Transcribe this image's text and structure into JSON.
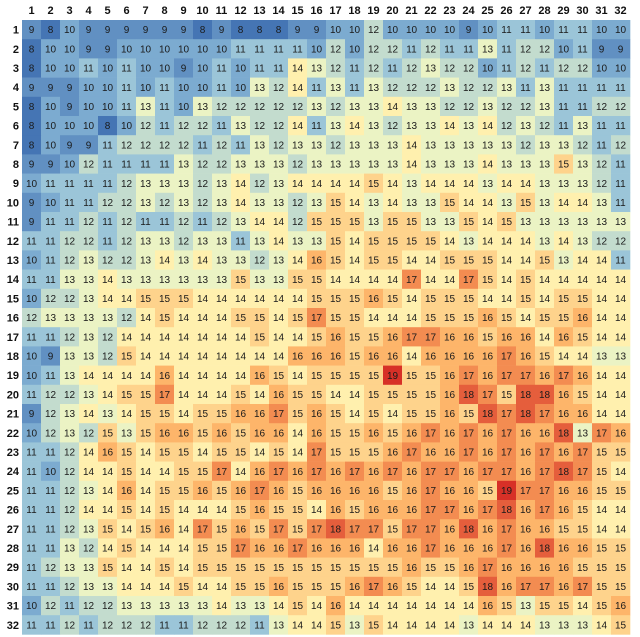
{
  "chart_data": {
    "type": "heatmap",
    "title": "",
    "xlabel": "",
    "ylabel": "",
    "x_labels": [
      "1",
      "2",
      "3",
      "4",
      "5",
      "6",
      "7",
      "8",
      "9",
      "10",
      "11",
      "12",
      "13",
      "14",
      "15",
      "16",
      "17",
      "18",
      "19",
      "20",
      "21",
      "22",
      "23",
      "24",
      "25",
      "26",
      "27",
      "28",
      "29",
      "30",
      "31",
      "32"
    ],
    "y_labels": [
      "1",
      "2",
      "3",
      "4",
      "5",
      "6",
      "7",
      "8",
      "9",
      "10",
      "11",
      "12",
      "13",
      "14",
      "15",
      "16",
      "17",
      "18",
      "19",
      "20",
      "21",
      "22",
      "23",
      "24",
      "25",
      "26",
      "27",
      "28",
      "29",
      "30",
      "31",
      "32"
    ],
    "value_range": [
      8,
      19
    ],
    "colormap": [
      "#4575b4",
      "#91bfdb",
      "#ffffbf",
      "#fdae61",
      "#d73027"
    ],
    "legend": "none",
    "grid": false,
    "values": [
      [
        9,
        8,
        10,
        9,
        9,
        9,
        9,
        9,
        9,
        8,
        9,
        8,
        8,
        8,
        9,
        9,
        10,
        10,
        12,
        10,
        10,
        10,
        10,
        9,
        10,
        11,
        11,
        10,
        11,
        11,
        10,
        10
      ],
      [
        8,
        10,
        10,
        9,
        9,
        10,
        10,
        10,
        10,
        10,
        10,
        11,
        11,
        11,
        11,
        10,
        12,
        10,
        12,
        12,
        11,
        12,
        11,
        11,
        13,
        11,
        12,
        12,
        10,
        11,
        9,
        9
      ],
      [
        8,
        10,
        10,
        11,
        10,
        11,
        10,
        10,
        9,
        10,
        11,
        10,
        11,
        11,
        14,
        13,
        12,
        11,
        12,
        11,
        12,
        13,
        12,
        12,
        10,
        11,
        12,
        11,
        12,
        12,
        10,
        10
      ],
      [
        9,
        9,
        9,
        10,
        10,
        11,
        10,
        11,
        10,
        10,
        11,
        10,
        13,
        12,
        14,
        11,
        13,
        11,
        13,
        12,
        12,
        12,
        13,
        12,
        12,
        13,
        11,
        13,
        11,
        11,
        11,
        11
      ],
      [
        8,
        10,
        9,
        10,
        10,
        11,
        13,
        11,
        10,
        13,
        12,
        12,
        12,
        12,
        12,
        13,
        12,
        13,
        13,
        14,
        13,
        13,
        12,
        12,
        13,
        12,
        12,
        13,
        11,
        11,
        12,
        12
      ],
      [
        8,
        10,
        10,
        10,
        8,
        10,
        12,
        11,
        12,
        12,
        11,
        13,
        12,
        12,
        14,
        11,
        13,
        14,
        13,
        12,
        13,
        13,
        14,
        13,
        14,
        12,
        13,
        12,
        11,
        13,
        11,
        11
      ],
      [
        8,
        10,
        9,
        9,
        11,
        12,
        12,
        12,
        12,
        11,
        12,
        11,
        13,
        12,
        13,
        13,
        12,
        13,
        13,
        13,
        14,
        13,
        13,
        13,
        13,
        13,
        12,
        13,
        13,
        12,
        11,
        12
      ],
      [
        9,
        9,
        10,
        12,
        11,
        11,
        11,
        11,
        13,
        12,
        12,
        13,
        13,
        13,
        12,
        13,
        13,
        13,
        13,
        13,
        14,
        13,
        13,
        13,
        14,
        13,
        13,
        13,
        15,
        13,
        12,
        11
      ],
      [
        10,
        11,
        11,
        11,
        11,
        12,
        13,
        13,
        13,
        12,
        13,
        14,
        12,
        13,
        14,
        14,
        14,
        14,
        15,
        14,
        13,
        14,
        14,
        14,
        13,
        14,
        14,
        13,
        13,
        13,
        12,
        11
      ],
      [
        9,
        10,
        11,
        11,
        12,
        12,
        13,
        12,
        13,
        12,
        13,
        14,
        13,
        13,
        12,
        13,
        15,
        14,
        13,
        14,
        13,
        13,
        15,
        14,
        14,
        13,
        15,
        13,
        14,
        14,
        13,
        11
      ],
      [
        9,
        11,
        11,
        12,
        11,
        12,
        11,
        11,
        12,
        11,
        12,
        13,
        14,
        14,
        12,
        15,
        15,
        15,
        13,
        15,
        15,
        13,
        13,
        15,
        14,
        15,
        13,
        13,
        13,
        13,
        13,
        13
      ],
      [
        11,
        11,
        12,
        12,
        11,
        12,
        13,
        13,
        12,
        13,
        13,
        11,
        13,
        14,
        13,
        13,
        15,
        14,
        15,
        15,
        15,
        15,
        14,
        13,
        14,
        14,
        14,
        13,
        14,
        13,
        12,
        12
      ],
      [
        10,
        11,
        12,
        13,
        12,
        12,
        13,
        14,
        13,
        14,
        13,
        13,
        12,
        13,
        14,
        16,
        15,
        14,
        15,
        15,
        14,
        14,
        15,
        15,
        15,
        14,
        14,
        15,
        13,
        14,
        14,
        11
      ],
      [
        11,
        11,
        13,
        13,
        14,
        13,
        13,
        13,
        13,
        13,
        13,
        15,
        13,
        13,
        15,
        15,
        14,
        14,
        14,
        14,
        17,
        14,
        14,
        17,
        15,
        14,
        15,
        14,
        14,
        14,
        14,
        14
      ],
      [
        10,
        12,
        12,
        13,
        14,
        14,
        15,
        15,
        15,
        14,
        14,
        14,
        14,
        14,
        14,
        15,
        15,
        15,
        16,
        15,
        14,
        15,
        15,
        15,
        14,
        14,
        15,
        14,
        15,
        15,
        14,
        14
      ],
      [
        12,
        13,
        13,
        13,
        13,
        12,
        14,
        15,
        14,
        14,
        14,
        15,
        15,
        14,
        15,
        17,
        15,
        15,
        14,
        14,
        14,
        15,
        15,
        15,
        16,
        15,
        14,
        15,
        15,
        16,
        14,
        14
      ],
      [
        11,
        11,
        12,
        13,
        12,
        14,
        14,
        14,
        14,
        14,
        14,
        14,
        15,
        14,
        14,
        15,
        16,
        15,
        15,
        16,
        17,
        17,
        16,
        16,
        15,
        16,
        16,
        14,
        16,
        15,
        14,
        14
      ],
      [
        10,
        9,
        13,
        13,
        12,
        15,
        14,
        14,
        14,
        14,
        14,
        14,
        14,
        14,
        16,
        16,
        16,
        15,
        16,
        16,
        14,
        16,
        16,
        16,
        16,
        17,
        16,
        15,
        14,
        14,
        13,
        13
      ],
      [
        10,
        11,
        13,
        14,
        14,
        14,
        14,
        16,
        14,
        14,
        14,
        14,
        16,
        15,
        14,
        15,
        15,
        15,
        15,
        19,
        15,
        15,
        16,
        17,
        16,
        17,
        17,
        16,
        17,
        16,
        14,
        14
      ],
      [
        11,
        12,
        12,
        13,
        14,
        15,
        15,
        17,
        14,
        14,
        14,
        15,
        14,
        16,
        15,
        15,
        14,
        14,
        15,
        15,
        15,
        15,
        16,
        18,
        17,
        15,
        18,
        18,
        16,
        15,
        14,
        14
      ],
      [
        9,
        12,
        13,
        14,
        13,
        14,
        15,
        15,
        14,
        15,
        15,
        16,
        16,
        17,
        15,
        16,
        15,
        14,
        15,
        14,
        15,
        15,
        16,
        15,
        18,
        17,
        18,
        17,
        16,
        16,
        14,
        14
      ],
      [
        10,
        12,
        13,
        12,
        15,
        13,
        15,
        16,
        16,
        15,
        16,
        15,
        16,
        16,
        14,
        16,
        15,
        15,
        16,
        15,
        16,
        17,
        16,
        17,
        16,
        17,
        16,
        16,
        18,
        13,
        17,
        16
      ],
      [
        11,
        11,
        12,
        14,
        16,
        15,
        14,
        15,
        15,
        14,
        15,
        15,
        14,
        15,
        14,
        17,
        15,
        15,
        15,
        16,
        17,
        16,
        16,
        17,
        16,
        17,
        16,
        17,
        16,
        17,
        15,
        15
      ],
      [
        11,
        10,
        12,
        14,
        14,
        15,
        14,
        14,
        15,
        15,
        17,
        14,
        16,
        17,
        16,
        17,
        16,
        17,
        16,
        17,
        16,
        17,
        17,
        16,
        17,
        17,
        16,
        17,
        18,
        17,
        15,
        14
      ],
      [
        11,
        11,
        12,
        13,
        14,
        16,
        14,
        15,
        15,
        16,
        15,
        16,
        17,
        16,
        15,
        16,
        16,
        16,
        16,
        15,
        16,
        17,
        16,
        16,
        15,
        19,
        17,
        17,
        16,
        16,
        15,
        15
      ],
      [
        11,
        11,
        12,
        14,
        14,
        15,
        14,
        15,
        14,
        14,
        14,
        15,
        16,
        15,
        15,
        14,
        16,
        15,
        16,
        16,
        16,
        17,
        17,
        16,
        17,
        18,
        16,
        17,
        16,
        15,
        14,
        14
      ],
      [
        11,
        11,
        12,
        13,
        15,
        14,
        15,
        16,
        14,
        17,
        15,
        16,
        15,
        17,
        15,
        17,
        18,
        17,
        17,
        15,
        17,
        17,
        16,
        18,
        16,
        17,
        16,
        16,
        15,
        15,
        14,
        14
      ],
      [
        11,
        11,
        13,
        12,
        14,
        15,
        14,
        14,
        14,
        15,
        15,
        17,
        16,
        16,
        17,
        16,
        16,
        16,
        14,
        16,
        16,
        17,
        16,
        16,
        16,
        17,
        16,
        18,
        16,
        16,
        15,
        15
      ],
      [
        11,
        12,
        13,
        13,
        15,
        14,
        14,
        15,
        14,
        15,
        15,
        15,
        15,
        15,
        15,
        15,
        15,
        15,
        15,
        15,
        16,
        15,
        15,
        16,
        17,
        16,
        16,
        16,
        16,
        15,
        15,
        15
      ],
      [
        11,
        11,
        12,
        13,
        13,
        14,
        14,
        14,
        15,
        14,
        14,
        15,
        15,
        16,
        15,
        15,
        15,
        16,
        17,
        16,
        15,
        14,
        14,
        15,
        18,
        16,
        17,
        17,
        16,
        17,
        15,
        15
      ],
      [
        10,
        12,
        11,
        12,
        12,
        13,
        13,
        13,
        13,
        13,
        14,
        13,
        13,
        14,
        15,
        14,
        16,
        14,
        14,
        14,
        14,
        14,
        14,
        14,
        16,
        15,
        13,
        15,
        15,
        14,
        15,
        16
      ],
      [
        11,
        11,
        12,
        11,
        12,
        12,
        12,
        11,
        11,
        12,
        12,
        12,
        11,
        13,
        14,
        14,
        15,
        13,
        15,
        14,
        14,
        14,
        14,
        13,
        14,
        14,
        14,
        13,
        13,
        13,
        14,
        15
      ]
    ]
  }
}
